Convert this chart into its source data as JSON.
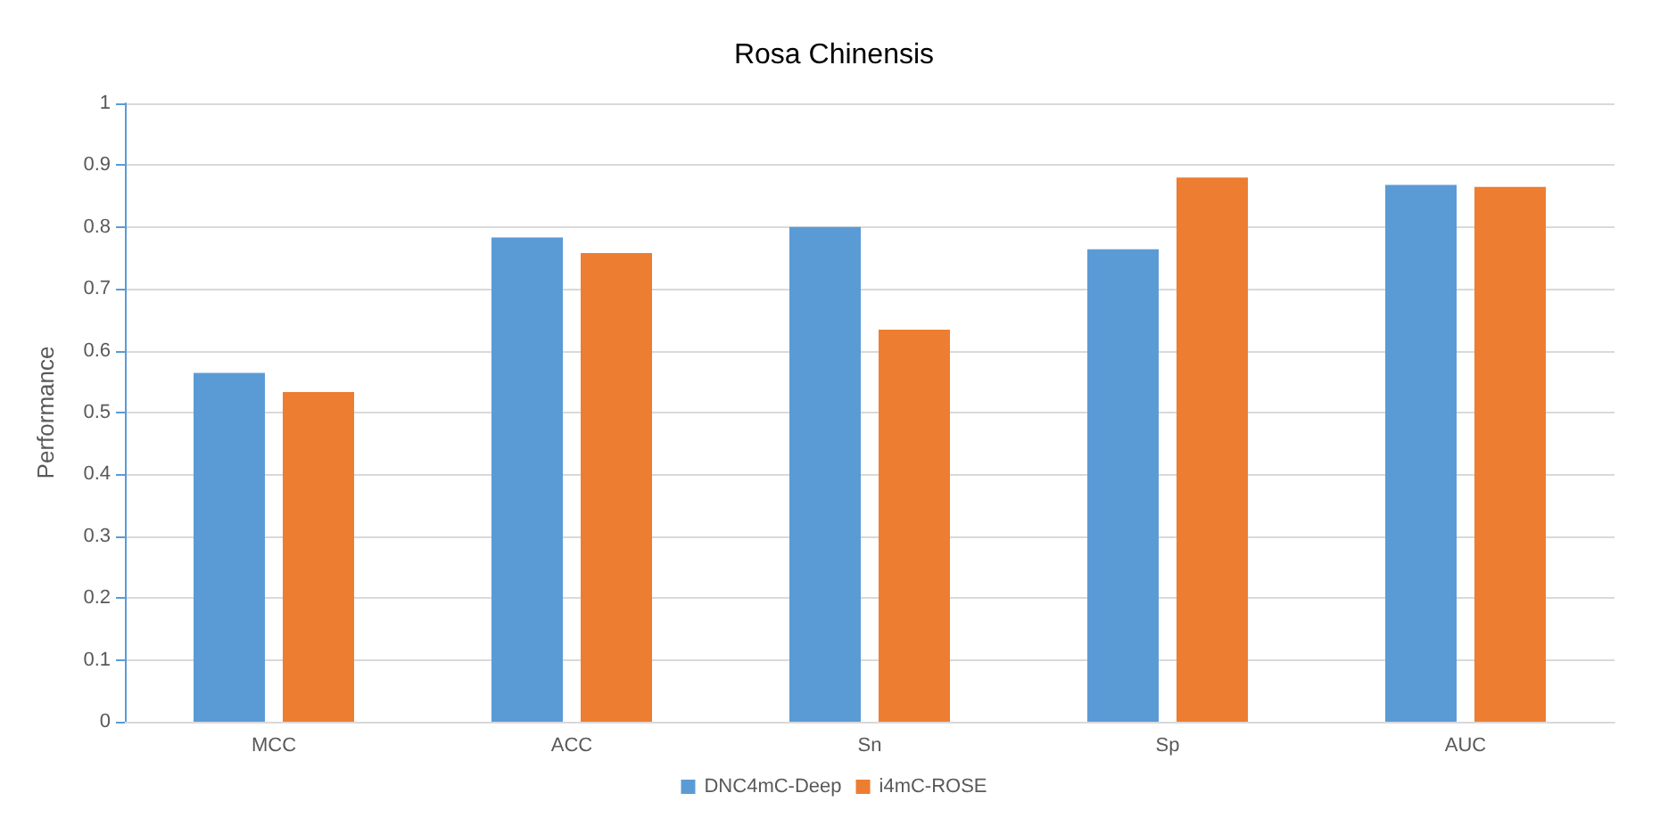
{
  "chart_data": {
    "type": "bar",
    "title": "Rosa Chinensis",
    "ylabel": "Performance",
    "categories": [
      "MCC",
      "ACC",
      "Sn",
      "Sp",
      "AUC"
    ],
    "series": [
      {
        "name": "DNC4mC-Deep",
        "color": "#5b9bd5",
        "values": [
          0.564,
          0.783,
          0.8,
          0.764,
          0.868
        ]
      },
      {
        "name": "i4mC-ROSE",
        "color": "#ed7d31",
        "values": [
          0.533,
          0.758,
          0.634,
          0.88,
          0.865
        ]
      }
    ],
    "ylim": [
      0,
      1
    ],
    "yticks": [
      0,
      0.1,
      0.2,
      0.3,
      0.4,
      0.5,
      0.6,
      0.7,
      0.8,
      0.9,
      1
    ],
    "grid": "y",
    "legend": "bottom"
  }
}
